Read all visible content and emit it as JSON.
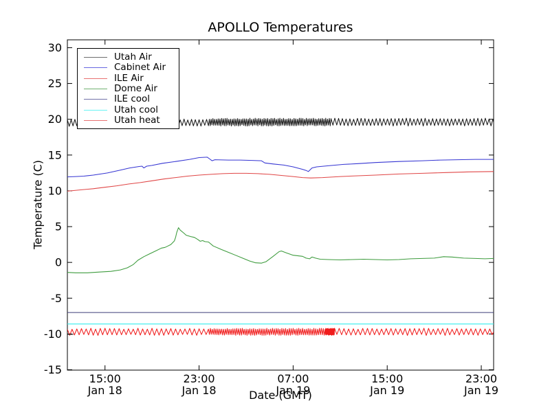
{
  "figure": {
    "background": "#ffffff",
    "spine_color": "#000000"
  },
  "chart_data": {
    "type": "line",
    "title": "APOLLO Temperatures",
    "xlabel": "Date (GMT)",
    "ylabel": "Temperature (C)",
    "xlim_hours": [
      11.8,
      48.05
    ],
    "ylim": [
      -15.05,
      31.1
    ],
    "grid": false,
    "legend_position": "upper-left",
    "x_ticks": [
      {
        "hour": 15,
        "time": "15:00",
        "date": "Jan 18"
      },
      {
        "hour": 23,
        "time": "23:00",
        "date": "Jan 18"
      },
      {
        "hour": 31,
        "time": "07:00",
        "date": "Jan 19"
      },
      {
        "hour": 39,
        "time": "15:00",
        "date": "Jan 19"
      },
      {
        "hour": 47,
        "time": "23:00",
        "date": "Jan 19"
      }
    ],
    "y_ticks": [
      {
        "value": 30,
        "label": "30"
      },
      {
        "value": 25,
        "label": "25"
      },
      {
        "value": 20,
        "label": "20"
      },
      {
        "value": 15,
        "label": "15"
      },
      {
        "value": 10,
        "label": "10"
      },
      {
        "value": 5,
        "label": "5"
      },
      {
        "value": 0,
        "label": "0"
      },
      {
        "value": -5,
        "label": "-5"
      },
      {
        "value": -10,
        "label": "-10"
      },
      {
        "value": -15,
        "label": "-15"
      }
    ],
    "legend_entries": [
      {
        "label": "Utah Air",
        "color": "#6e6e6e"
      },
      {
        "label": "Cabinet Air",
        "color": "#6666e0"
      },
      {
        "label": "ILE Air",
        "color": "#e87070"
      },
      {
        "label": "Dome Air",
        "color": "#6fb06f"
      },
      {
        "label": "ILE cool",
        "color": "#7070a8"
      },
      {
        "label": "Utah cool",
        "color": "#66f2f2"
      },
      {
        "label": "Utah heat",
        "color": "#e87070"
      }
    ],
    "series": [
      {
        "name": "Utah Air",
        "color": "#1a1a1a",
        "style": "noisy",
        "base": [
          [
            11.8,
            19.55
          ],
          [
            23.0,
            19.5
          ],
          [
            24.0,
            19.6
          ],
          [
            34.0,
            19.6
          ],
          [
            48.05,
            19.6
          ]
        ],
        "amplitude": 0.55,
        "period": 0.16,
        "dense": [
          {
            "from": 23.8,
            "to": 34.2,
            "period": 0.075
          }
        ]
      },
      {
        "name": "Cabinet Air",
        "color": "#3434d2",
        "style": "smooth",
        "points": [
          [
            11.8,
            11.95
          ],
          [
            12.5,
            12.0
          ],
          [
            13.2,
            12.05
          ],
          [
            14.0,
            12.2
          ],
          [
            15.2,
            12.5
          ],
          [
            16.3,
            12.9
          ],
          [
            17.1,
            13.2
          ],
          [
            17.9,
            13.4
          ],
          [
            18.15,
            13.45
          ],
          [
            18.3,
            13.2
          ],
          [
            18.55,
            13.45
          ],
          [
            19.0,
            13.55
          ],
          [
            19.9,
            13.85
          ],
          [
            21.0,
            14.1
          ],
          [
            22.2,
            14.4
          ],
          [
            23.0,
            14.65
          ],
          [
            23.7,
            14.7
          ],
          [
            23.9,
            14.45
          ],
          [
            24.1,
            14.2
          ],
          [
            24.35,
            14.35
          ],
          [
            25.5,
            14.3
          ],
          [
            26.5,
            14.3
          ],
          [
            27.5,
            14.25
          ],
          [
            28.3,
            14.2
          ],
          [
            28.6,
            13.9
          ],
          [
            29.3,
            13.75
          ],
          [
            30.2,
            13.6
          ],
          [
            31.0,
            13.35
          ],
          [
            31.8,
            13.0
          ],
          [
            32.1,
            12.85
          ],
          [
            32.3,
            12.7
          ],
          [
            32.6,
            13.2
          ],
          [
            33.0,
            13.35
          ],
          [
            34.0,
            13.5
          ],
          [
            35.3,
            13.7
          ],
          [
            36.5,
            13.8
          ],
          [
            38.0,
            13.95
          ],
          [
            40.0,
            14.1
          ],
          [
            42.0,
            14.2
          ],
          [
            43.5,
            14.3
          ],
          [
            45.0,
            14.35
          ],
          [
            46.5,
            14.4
          ],
          [
            48.05,
            14.4
          ]
        ]
      },
      {
        "name": "ILE Air",
        "color": "#e04545",
        "style": "smooth",
        "points": [
          [
            11.8,
            9.95
          ],
          [
            13.0,
            10.15
          ],
          [
            14.0,
            10.3
          ],
          [
            15.0,
            10.5
          ],
          [
            16.0,
            10.7
          ],
          [
            17.0,
            10.95
          ],
          [
            18.0,
            11.15
          ],
          [
            19.0,
            11.4
          ],
          [
            20.0,
            11.65
          ],
          [
            21.0,
            11.85
          ],
          [
            22.0,
            12.05
          ],
          [
            23.0,
            12.2
          ],
          [
            24.0,
            12.3
          ],
          [
            25.0,
            12.4
          ],
          [
            26.0,
            12.45
          ],
          [
            27.0,
            12.45
          ],
          [
            28.0,
            12.4
          ],
          [
            29.0,
            12.3
          ],
          [
            30.0,
            12.15
          ],
          [
            31.0,
            12.0
          ],
          [
            31.8,
            11.85
          ],
          [
            32.5,
            11.8
          ],
          [
            33.5,
            11.85
          ],
          [
            35.0,
            12.0
          ],
          [
            36.5,
            12.1
          ],
          [
            38.0,
            12.2
          ],
          [
            40.0,
            12.35
          ],
          [
            42.0,
            12.45
          ],
          [
            44.0,
            12.55
          ],
          [
            46.0,
            12.65
          ],
          [
            48.05,
            12.7
          ]
        ]
      },
      {
        "name": "Dome Air",
        "color": "#3c9b3c",
        "style": "smooth",
        "points": [
          [
            11.8,
            -1.4
          ],
          [
            12.5,
            -1.45
          ],
          [
            13.5,
            -1.45
          ],
          [
            14.5,
            -1.35
          ],
          [
            15.5,
            -1.25
          ],
          [
            16.3,
            -1.05
          ],
          [
            16.9,
            -0.75
          ],
          [
            17.4,
            -0.3
          ],
          [
            17.8,
            0.3
          ],
          [
            18.3,
            0.8
          ],
          [
            18.8,
            1.2
          ],
          [
            19.3,
            1.6
          ],
          [
            19.8,
            2.0
          ],
          [
            20.1,
            2.1
          ],
          [
            20.3,
            2.25
          ],
          [
            20.6,
            2.5
          ],
          [
            20.9,
            3.0
          ],
          [
            21.0,
            3.5
          ],
          [
            21.1,
            4.2
          ],
          [
            21.25,
            4.85
          ],
          [
            21.4,
            4.5
          ],
          [
            21.7,
            4.1
          ],
          [
            21.9,
            3.8
          ],
          [
            22.3,
            3.6
          ],
          [
            22.6,
            3.5
          ],
          [
            22.9,
            3.2
          ],
          [
            23.1,
            2.95
          ],
          [
            23.3,
            3.05
          ],
          [
            23.5,
            2.9
          ],
          [
            23.8,
            2.85
          ],
          [
            24.2,
            2.3
          ],
          [
            24.9,
            1.8
          ],
          [
            25.5,
            1.4
          ],
          [
            26.1,
            1.0
          ],
          [
            26.7,
            0.6
          ],
          [
            27.3,
            0.2
          ],
          [
            27.8,
            -0.05
          ],
          [
            28.3,
            -0.1
          ],
          [
            28.7,
            0.1
          ],
          [
            29.3,
            0.85
          ],
          [
            29.8,
            1.5
          ],
          [
            30.0,
            1.6
          ],
          [
            30.4,
            1.35
          ],
          [
            31.0,
            1.0
          ],
          [
            31.8,
            0.85
          ],
          [
            32.1,
            0.6
          ],
          [
            32.4,
            0.5
          ],
          [
            32.6,
            0.75
          ],
          [
            32.9,
            0.6
          ],
          [
            33.3,
            0.45
          ],
          [
            34.0,
            0.4
          ],
          [
            35.0,
            0.35
          ],
          [
            36.0,
            0.4
          ],
          [
            37.0,
            0.45
          ],
          [
            38.0,
            0.4
          ],
          [
            39.0,
            0.35
          ],
          [
            40.0,
            0.4
          ],
          [
            41.0,
            0.5
          ],
          [
            42.0,
            0.55
          ],
          [
            43.0,
            0.6
          ],
          [
            43.8,
            0.8
          ],
          [
            44.5,
            0.75
          ],
          [
            45.5,
            0.6
          ],
          [
            46.5,
            0.55
          ],
          [
            47.3,
            0.5
          ],
          [
            48.05,
            0.55
          ]
        ]
      },
      {
        "name": "ILE cool",
        "color": "#3c3c78",
        "style": "smooth",
        "points": [
          [
            11.8,
            -7.0
          ],
          [
            48.05,
            -7.0
          ]
        ]
      },
      {
        "name": "Utah cool",
        "color": "#33eeee",
        "style": "smooth",
        "points": [
          [
            11.8,
            -8.6
          ],
          [
            48.05,
            -8.6
          ]
        ]
      },
      {
        "name": "Utah heat",
        "color": "#f01c1c",
        "style": "noisy",
        "base": [
          [
            11.8,
            -9.7
          ],
          [
            48.05,
            -9.7
          ]
        ],
        "amplitude": 0.5,
        "period": 0.2,
        "dense": [
          {
            "from": 23.6,
            "to": 34.1,
            "period": 0.08
          },
          {
            "from": 33.7,
            "to": 34.5,
            "period": 0.025
          }
        ]
      },
      {
        "name": "start-mark",
        "color": "#111111",
        "style": "smooth",
        "in_legend": false,
        "points": [
          [
            11.8,
            -10.05
          ],
          [
            12.3,
            -10.05
          ]
        ]
      }
    ]
  }
}
